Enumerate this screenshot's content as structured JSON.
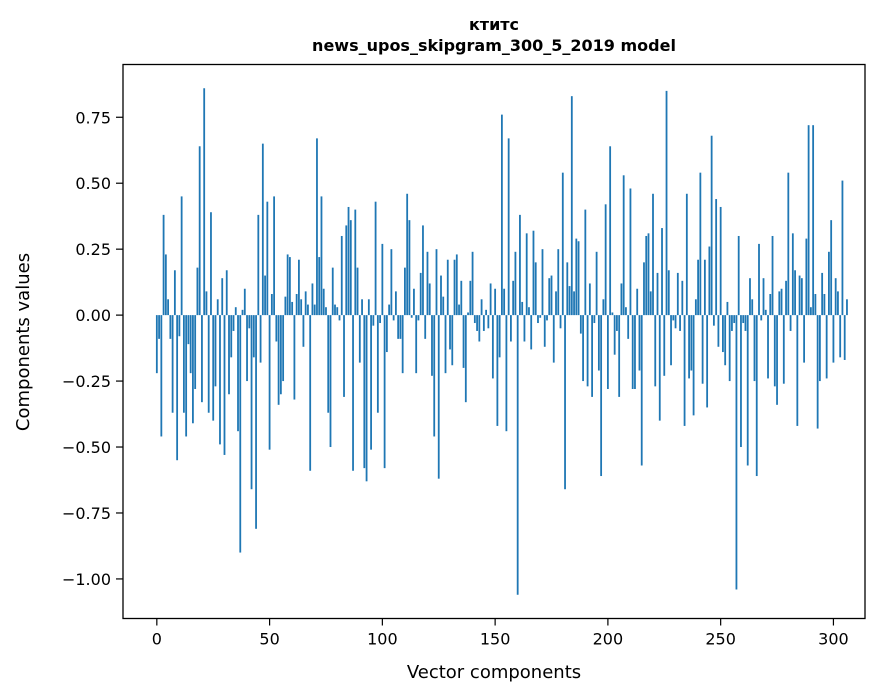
{
  "chart_data": {
    "type": "bar",
    "title_lines": [
      "ктитс",
      "news_upos_skipgram_300_5_2019 model"
    ],
    "xlabel": "Vector components",
    "ylabel": "Components values",
    "xlim": [
      -15,
      314
    ],
    "ylim": [
      -1.15,
      0.95
    ],
    "xticks": [
      0,
      50,
      100,
      150,
      200,
      250,
      300
    ],
    "xtick_labels": [
      "0",
      "50",
      "100",
      "150",
      "200",
      "250",
      "300"
    ],
    "yticks": [
      -1.0,
      -0.75,
      -0.5,
      -0.25,
      0.0,
      0.25,
      0.5,
      0.75
    ],
    "ytick_labels": [
      "−1.00",
      "−0.75",
      "−0.50",
      "−0.25",
      "0.00",
      "0.25",
      "0.50",
      "0.75"
    ],
    "bar_color": "#1f77b4",
    "series": [
      {
        "name": "components",
        "x_start": 0,
        "values": [
          -0.22,
          -0.09,
          -0.46,
          0.38,
          0.23,
          0.06,
          -0.09,
          -0.37,
          0.17,
          -0.55,
          -0.08,
          0.45,
          -0.37,
          -0.46,
          -0.11,
          -0.22,
          -0.41,
          -0.28,
          0.18,
          0.64,
          -0.33,
          0.86,
          0.09,
          -0.37,
          0.39,
          -0.4,
          -0.27,
          0.06,
          -0.49,
          0.14,
          -0.53,
          0.17,
          -0.3,
          -0.16,
          -0.06,
          0.03,
          -0.44,
          -0.9,
          0.02,
          0.1,
          -0.25,
          -0.05,
          -0.66,
          -0.16,
          -0.81,
          0.38,
          -0.18,
          0.65,
          0.15,
          0.43,
          -0.51,
          0.08,
          0.45,
          -0.1,
          -0.34,
          -0.3,
          -0.25,
          0.07,
          0.23,
          0.22,
          0.05,
          -0.32,
          0.08,
          0.21,
          0.06,
          -0.12,
          0.09,
          0.04,
          -0.59,
          0.12,
          0.04,
          0.67,
          0.22,
          0.45,
          0.1,
          0.03,
          -0.37,
          -0.5,
          0.18,
          0.04,
          0.03,
          -0.02,
          0.3,
          -0.31,
          0.34,
          0.41,
          0.36,
          -0.59,
          0.4,
          0.18,
          -0.18,
          0.06,
          -0.58,
          -0.63,
          0.06,
          -0.51,
          -0.04,
          0.43,
          -0.37,
          -0.03,
          0.27,
          -0.58,
          -0.14,
          0.04,
          0.25,
          -0.02,
          0.09,
          -0.09,
          -0.09,
          -0.22,
          0.18,
          0.46,
          0.36,
          -0.01,
          0.1,
          -0.22,
          -0.02,
          0.16,
          0.34,
          -0.09,
          0.24,
          0.12,
          -0.23,
          -0.46,
          0.25,
          -0.62,
          0.15,
          0.07,
          -0.22,
          0.21,
          -0.13,
          -0.19,
          0.21,
          0.23,
          0.04,
          0.13,
          -0.2,
          -0.33,
          0.01,
          0.13,
          0.24,
          -0.03,
          -0.06,
          -0.1,
          0.06,
          -0.06,
          0.02,
          -0.05,
          0.12,
          -0.24,
          0.1,
          -0.42,
          -0.16,
          0.76,
          0.1,
          -0.44,
          0.67,
          -0.1,
          0.13,
          0.24,
          -1.06,
          0.38,
          0.05,
          -0.1,
          0.31,
          0.03,
          -0.13,
          0.32,
          0.2,
          -0.03,
          -0.01,
          0.25,
          -0.12,
          -0.02,
          0.14,
          0.15,
          -0.18,
          0.09,
          0.25,
          -0.05,
          0.54,
          -0.66,
          0.2,
          0.11,
          0.83,
          0.09,
          0.29,
          0.28,
          -0.07,
          -0.25,
          0.4,
          -0.27,
          0.12,
          -0.31,
          -0.03,
          0.24,
          -0.21,
          -0.61,
          0.06,
          0.42,
          -0.28,
          0.64,
          0.01,
          -0.15,
          -0.06,
          -0.31,
          0.12,
          0.53,
          0.03,
          -0.09,
          0.48,
          -0.28,
          -0.28,
          0.1,
          -0.21,
          -0.57,
          0.2,
          0.3,
          0.31,
          0.09,
          0.46,
          -0.27,
          0.16,
          -0.4,
          0.33,
          -0.23,
          0.85,
          0.17,
          -0.19,
          -0.02,
          -0.05,
          0.16,
          -0.06,
          0.13,
          -0.42,
          0.46,
          -0.24,
          -0.21,
          -0.38,
          0.06,
          0.21,
          0.54,
          -0.26,
          0.21,
          -0.35,
          0.26,
          0.68,
          -0.04,
          0.44,
          -0.12,
          0.41,
          -0.14,
          -0.19,
          0.05,
          -0.25,
          -0.06,
          -0.03,
          -1.04,
          0.3,
          -0.5,
          -0.03,
          -0.06,
          -0.57,
          0.14,
          0.06,
          -0.25,
          -0.61,
          0.27,
          -0.02,
          0.14,
          0.02,
          -0.24,
          0.08,
          0.3,
          -0.27,
          -0.34,
          0.09,
          0.1,
          -0.26,
          0.13,
          0.54,
          -0.06,
          0.31,
          0.17,
          -0.42,
          0.15,
          0.14,
          -0.18,
          0.29,
          0.72,
          0.03,
          0.72,
          0.08,
          -0.43,
          -0.25,
          0.16,
          0.08,
          -0.24,
          0.24,
          0.36,
          -0.18,
          0.14,
          0.09,
          -0.16,
          0.51,
          -0.17,
          0.06
        ]
      }
    ]
  }
}
